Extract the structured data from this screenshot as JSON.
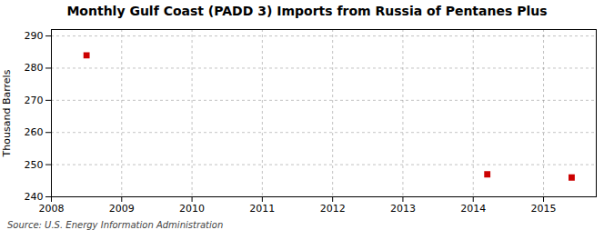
{
  "chart_data": {
    "type": "scatter",
    "title": "Monthly Gulf Coast (PADD 3) Imports from Russia of Pentanes Plus",
    "ylabel": "Thousand Barrels",
    "source": "Source: U.S. Energy Information Administration",
    "x": [
      2008.5,
      2014.2,
      2015.4
    ],
    "values": [
      284,
      247,
      246
    ],
    "color": "#cc0000",
    "marker": "square",
    "xlim": [
      2008,
      2015.75
    ],
    "ylim": [
      240,
      292
    ],
    "xticks": [
      2008,
      2009,
      2010,
      2011,
      2012,
      2013,
      2014,
      2015
    ],
    "yticks": [
      240,
      250,
      260,
      270,
      280,
      290
    ],
    "grid": true
  }
}
